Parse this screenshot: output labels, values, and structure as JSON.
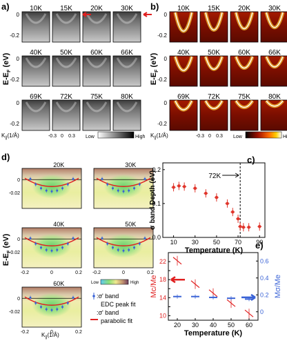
{
  "panels": {
    "a": {
      "label": "a)",
      "temps": [
        "10K",
        "15K",
        "20K",
        "30K",
        "40K",
        "50K",
        "60K",
        "66K",
        "69K",
        "72K",
        "75K",
        "80K"
      ],
      "ylabel": "E-E",
      "ylabel_sub": "F",
      "ylabel_unit": "(eV)",
      "yticks": [
        "0",
        "-0.2"
      ],
      "xlabel": "K",
      "xlabel_sub": "||",
      "xlabel_unit": "(1/Å)",
      "xticks": [
        "-0.3",
        "0",
        "0.3"
      ],
      "colorbar_low": "Low",
      "colorbar_high": "High"
    },
    "b": {
      "label": "b)",
      "temps": [
        "10K",
        "15K",
        "20K",
        "30K",
        "40K",
        "50K",
        "60K",
        "66K",
        "69K",
        "72K",
        "75K",
        "80K"
      ],
      "ylabel": "E-E",
      "ylabel_sub": "F",
      "ylabel_unit": "(eV)",
      "yticks": [
        "0",
        "-0.2"
      ],
      "xlabel": "K",
      "xlabel_sub": "||",
      "xlabel_unit": "(1/Å)",
      "xticks": [
        "-0.3",
        "0",
        "0.3"
      ],
      "colorbar_low": "Low",
      "colorbar_high": "High"
    },
    "c": {
      "label": "c)",
      "annotation": "72K",
      "chart_data": {
        "type": "scatter",
        "x": [
          10,
          15,
          20,
          30,
          40,
          50,
          60,
          65,
          70,
          72,
          75,
          80,
          90
        ],
        "y": [
          0.148,
          0.152,
          0.15,
          0.145,
          0.13,
          0.118,
          0.1,
          0.075,
          0.055,
          0.032,
          0.03,
          0.03,
          0.032
        ],
        "xlabel": "Temperature (K)",
        "ylabel": "σ band Depth (eV)",
        "xlim": [
          0,
          95
        ],
        "ylim": [
          0,
          0.22
        ],
        "xticks": [
          "10",
          "30",
          "50",
          "70",
          "90"
        ],
        "yticks": [
          "0.0",
          "0.1",
          "0.2"
        ],
        "marker_color": "#e0352b",
        "vline_x": 72
      }
    },
    "d": {
      "label": "d)",
      "temps": [
        "20K",
        "30K",
        "40K",
        "50K",
        "60K"
      ],
      "ylabel": "E-E",
      "ylabel_sub": "F",
      "ylabel_unit": "(eV)",
      "yticks": [
        "0",
        "-0.02"
      ],
      "xticks": [
        "-0.2",
        "0",
        "0.2"
      ],
      "xlabel": "K",
      "xlabel_sub": "||",
      "xlabel_unit": "(1/Å)",
      "colorbar_low": "Low",
      "colorbar_high": "High",
      "legend_edc_line1": ":σ' band",
      "legend_edc_line2": "EDC peak fit",
      "legend_para_line1": ":σ' band",
      "legend_para_line2": "parabolic fit",
      "edc_color": "#3a63d6",
      "para_color": "#e02020"
    },
    "e": {
      "label": "e)",
      "chart_data": {
        "type": "scatter",
        "x": [
          20,
          30,
          40,
          50,
          60
        ],
        "series": [
          {
            "values": [
              22.2,
              17.0,
              15.0,
              12.8,
              10.5
            ],
            "color": "#e02020",
            "axis": "left"
          },
          {
            "values": [
              0.18,
              0.18,
              0.17,
              0.16,
              0.15
            ],
            "color": "#3a63d6",
            "axis": "right"
          }
        ],
        "xlabel": "Temperature (K)",
        "ylabel_left": "Mc/Me",
        "ylabel_right": "Mσ/Me",
        "xticks": [
          "20",
          "30",
          "40",
          "50",
          "60"
        ],
        "yticks_left": [
          "10",
          "12",
          "14",
          "16",
          "18",
          "20",
          "22"
        ],
        "yticks_right": [
          "0",
          "0.2",
          "0.4",
          "0.6"
        ],
        "xlim": [
          15,
          65
        ],
        "ylim_left": [
          9,
          24
        ],
        "ylim_right": [
          -0.1,
          0.7
        ]
      }
    }
  }
}
